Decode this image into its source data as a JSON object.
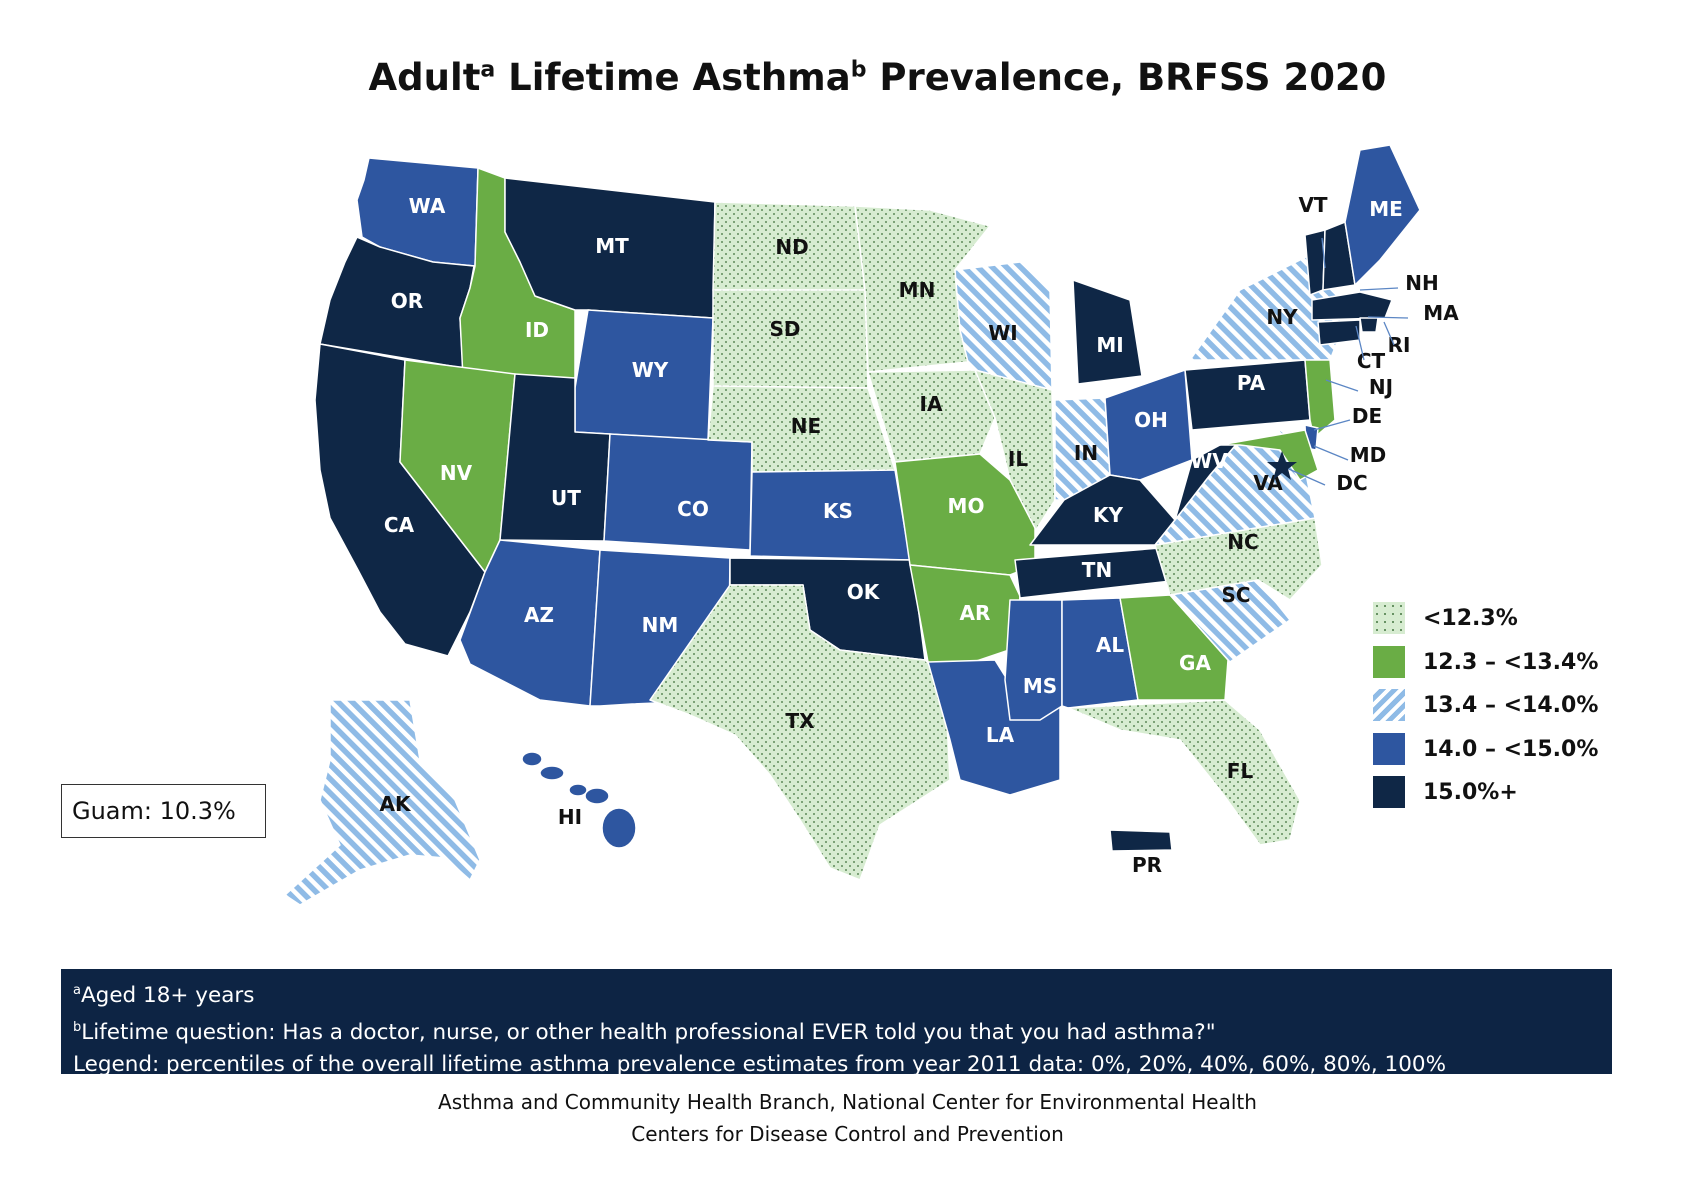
{
  "title": {
    "part1": "Adult",
    "sup1": "a",
    "part2": " Lifetime Asthma",
    "sup2": "b",
    "part3": " Prevalence, BRFSS 2020"
  },
  "colors": {
    "lt12_3": "#d7ecd1",
    "c12_3_13_4": "#6aad45",
    "c13_4_14_0": "#a4c8ea",
    "c14_0_15_0": "#2e56a0",
    "c15_plus": "#0f2746",
    "footer_bg": "#0d2444"
  },
  "legend": [
    {
      "label": "<12.3%",
      "category": "lt12_3"
    },
    {
      "label": "12.3 – <13.4%",
      "category": "c12_3_13_4"
    },
    {
      "label": "13.4 – <14.0%",
      "category": "c13_4_14_0"
    },
    {
      "label": "14.0 – <15.0%",
      "category": "c14_0_15_0"
    },
    {
      "label": "15.0%+",
      "category": "c15_plus"
    }
  ],
  "states": {
    "WA": "c14_0_15_0",
    "OR": "c15_plus",
    "CA": "c15_plus",
    "ID": "c12_3_13_4",
    "NV": "c12_3_13_4",
    "MT": "c15_plus",
    "WY": "c14_0_15_0",
    "UT": "c15_plus",
    "CO": "c14_0_15_0",
    "AZ": "c14_0_15_0",
    "NM": "c14_0_15_0",
    "ND": "lt12_3",
    "SD": "lt12_3",
    "NE": "lt12_3",
    "KS": "c14_0_15_0",
    "OK": "c15_plus",
    "TX": "lt12_3",
    "MN": "lt12_3",
    "IA": "lt12_3",
    "MO": "c12_3_13_4",
    "AR": "c12_3_13_4",
    "LA": "c14_0_15_0",
    "WI": "c13_4_14_0",
    "IL": "lt12_3",
    "MI": "c15_plus",
    "IN": "c13_4_14_0",
    "OH": "c14_0_15_0",
    "KY": "c15_plus",
    "TN": "c15_plus",
    "MS": "c14_0_15_0",
    "AL": "c14_0_15_0",
    "GA": "c12_3_13_4",
    "FL": "lt12_3",
    "SC": "c13_4_14_0",
    "NC": "lt12_3",
    "VA": "c13_4_14_0",
    "WV": "c15_plus",
    "PA": "c15_plus",
    "NY": "c13_4_14_0",
    "VT": "c15_plus",
    "NH": "c15_plus",
    "ME": "c14_0_15_0",
    "MA": "c15_plus",
    "RI": "c15_plus",
    "CT": "c15_plus",
    "NJ": "c12_3_13_4",
    "DE": "c14_0_15_0",
    "MD": "c12_3_13_4",
    "DC": "c15_plus",
    "AK": "c13_4_14_0",
    "HI": "c14_0_15_0",
    "PR": "c15_plus"
  },
  "state_labels": {
    "WA": "WA",
    "OR": "OR",
    "CA": "CA",
    "ID": "ID",
    "NV": "NV",
    "MT": "MT",
    "WY": "WY",
    "UT": "UT",
    "CO": "CO",
    "AZ": "AZ",
    "NM": "NM",
    "ND": "ND",
    "SD": "SD",
    "NE": "NE",
    "KS": "KS",
    "OK": "OK",
    "TX": "TX",
    "MN": "MN",
    "IA": "IA",
    "MO": "MO",
    "AR": "AR",
    "LA": "LA",
    "WI": "WI",
    "IL": "IL",
    "MI": "MI",
    "IN": "IN",
    "OH": "OH",
    "KY": "KY",
    "TN": "TN",
    "MS": "MS",
    "AL": "AL",
    "GA": "GA",
    "FL": "FL",
    "SC": "SC",
    "NC": "NC",
    "VA": "VA",
    "WV": "WV",
    "PA": "PA",
    "NY": "NY",
    "VT": "VT",
    "NH": "NH",
    "ME": "ME",
    "MA": "MA",
    "RI": "RI",
    "CT": "CT",
    "NJ": "NJ",
    "DE": "DE",
    "MD": "MD",
    "DC": "DC",
    "AK": "AK",
    "HI": "HI",
    "PR": "PR"
  },
  "guam": "Guam: 10.3%",
  "footnotes": {
    "a_sup": "a",
    "a_text": "Aged 18+ years",
    "b_sup": "b",
    "b_text": "Lifetime question: Has a doctor, nurse, or other health professional EVER told you that you had asthma?\"",
    "legend_note": "Legend: percentiles of the overall lifetime asthma prevalence estimates from year 2011 data: 0%, 20%, 40%, 60%, 80%, 100%"
  },
  "credit": {
    "line1": "Asthma and Community Health Branch, National Center for Environmental Health",
    "line2": "Centers for Disease Control and Prevention"
  }
}
